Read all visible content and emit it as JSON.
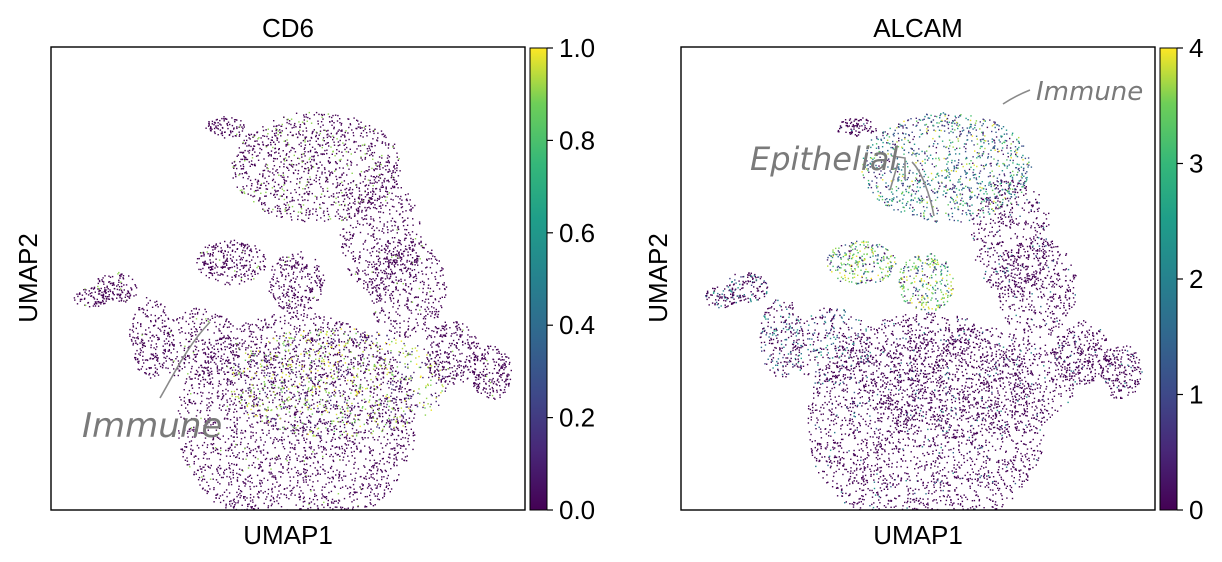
{
  "chart_data": [
    {
      "type": "scatter",
      "title": "CD6",
      "xlabel": "UMAP1",
      "ylabel": "UMAP2",
      "colorbar": {
        "label": "",
        "colormap": "viridis",
        "ticks": [
          "0.0",
          "0.2",
          "0.4",
          "0.6",
          "0.8",
          "1.0"
        ],
        "range": [
          0,
          1
        ]
      },
      "annotations": [
        "Immune"
      ],
      "grid": false
    },
    {
      "type": "scatter",
      "title": "ALCAM",
      "xlabel": "UMAP1",
      "ylabel": "UMAP2",
      "colorbar": {
        "label": "",
        "colormap": "viridis",
        "ticks": [
          "0",
          "1",
          "2",
          "3",
          "4"
        ],
        "range": [
          0,
          4
        ]
      },
      "annotations": [
        "Immune",
        "Epithelial"
      ],
      "grid": false
    }
  ],
  "colors": {
    "low": "#440154",
    "mid": "#21918c",
    "high": "#fde725",
    "annotation": "#7a7a7a"
  }
}
